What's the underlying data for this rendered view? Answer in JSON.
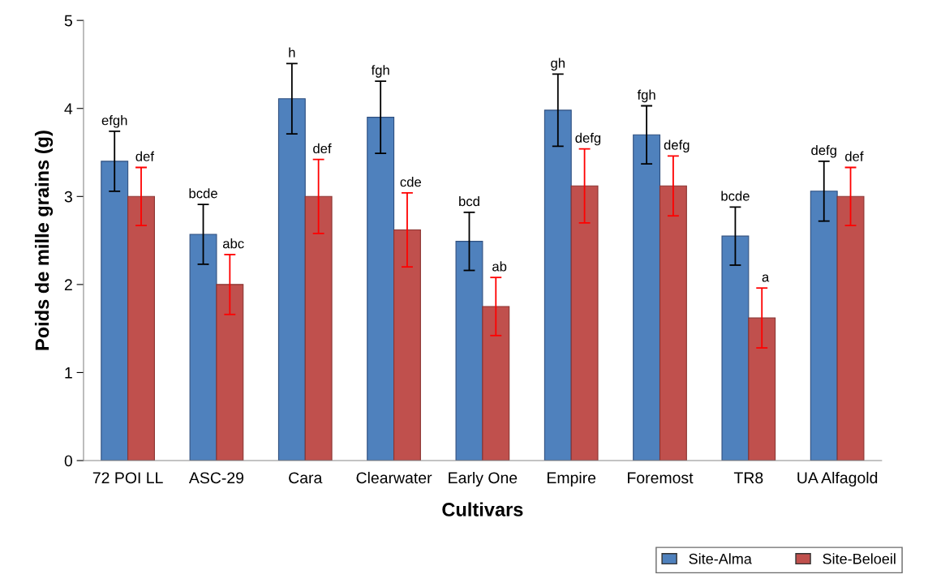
{
  "chart_data": {
    "type": "bar",
    "xlabel": "Cultivars",
    "ylabel": "Poids de mille grains (g)",
    "categories": [
      "72 POI LL",
      "ASC-29",
      "Cara",
      "Clearwater",
      "Early One",
      "Empire",
      "Foremost",
      "TR8",
      "UA Alfagold"
    ],
    "series": [
      {
        "name": "Site-Alma",
        "color": "#4f81bd",
        "values": [
          3.4,
          2.57,
          4.11,
          3.9,
          2.49,
          3.98,
          3.7,
          2.55,
          3.06
        ],
        "errors": [
          0.34,
          0.34,
          0.4,
          0.41,
          0.33,
          0.41,
          0.33,
          0.33,
          0.34
        ],
        "value_labels": [
          "efgh",
          "bcde",
          "h",
          "fgh",
          "bcd",
          "gh",
          "fgh",
          "bcde",
          "defg"
        ]
      },
      {
        "name": "Site-Beloeil",
        "color": "#c0504d",
        "values": [
          3.0,
          2.0,
          3.0,
          2.62,
          1.75,
          3.12,
          3.12,
          1.62,
          3.0
        ],
        "errors": [
          0.33,
          0.34,
          0.42,
          0.42,
          0.33,
          0.42,
          0.34,
          0.34,
          0.33
        ],
        "value_labels": [
          "def",
          "abc",
          "def",
          "cde",
          "ab",
          "defg",
          "defg",
          "a",
          "def"
        ]
      }
    ],
    "ylim": [
      0,
      5
    ],
    "yticks": [
      0,
      1,
      2,
      3,
      4,
      5
    ],
    "grid": false,
    "legend": "bottom right"
  }
}
